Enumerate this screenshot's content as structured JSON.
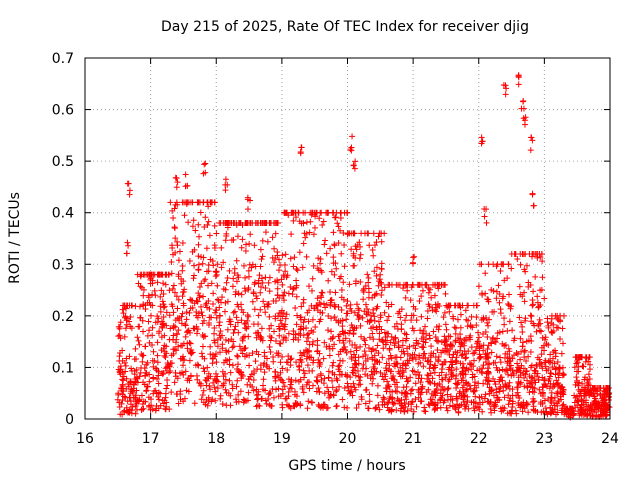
{
  "chart_data": {
    "type": "scatter",
    "title": "Day 215 of 2025, Rate Of TEC Index for receiver djig",
    "xlabel": "GPS time / hours",
    "ylabel": "ROTI / TECUs",
    "xlim": [
      16,
      24
    ],
    "ylim": [
      0,
      0.7
    ],
    "xticks": [
      "16",
      "17",
      "18",
      "19",
      "20",
      "21",
      "22",
      "23",
      "24"
    ],
    "yticks": [
      "0",
      "0.1",
      "0.2",
      "0.3",
      "0.4",
      "0.5",
      "0.6",
      "0.7"
    ],
    "grid": true,
    "marker": "plus",
    "color": "#ff0000",
    "notable_points": [
      {
        "x": 16.62,
        "y": 0.2
      },
      {
        "x": 16.65,
        "y": 0.35
      },
      {
        "x": 16.67,
        "y": 0.46
      },
      {
        "x": 17.4,
        "y": 0.47
      },
      {
        "x": 17.55,
        "y": 0.48
      },
      {
        "x": 17.82,
        "y": 0.5
      },
      {
        "x": 18.15,
        "y": 0.47
      },
      {
        "x": 18.5,
        "y": 0.43
      },
      {
        "x": 19.3,
        "y": 0.53
      },
      {
        "x": 20.05,
        "y": 0.55
      },
      {
        "x": 20.1,
        "y": 0.5
      },
      {
        "x": 21.0,
        "y": 0.32
      },
      {
        "x": 22.05,
        "y": 0.56
      },
      {
        "x": 22.1,
        "y": 0.41
      },
      {
        "x": 22.4,
        "y": 0.65
      },
      {
        "x": 22.62,
        "y": 0.67
      },
      {
        "x": 22.67,
        "y": 0.63
      },
      {
        "x": 22.7,
        "y": 0.59
      },
      {
        "x": 22.8,
        "y": 0.55
      },
      {
        "x": 22.83,
        "y": 0.44
      },
      {
        "x": 23.2,
        "y": 0.2
      },
      {
        "x": 23.5,
        "y": 0.11
      },
      {
        "x": 23.9,
        "y": 0.04
      }
    ],
    "density_profile": [
      {
        "x0": 16.5,
        "x1": 16.8,
        "peak": 0.22,
        "median": 0.04
      },
      {
        "x0": 16.8,
        "x1": 17.3,
        "peak": 0.28,
        "median": 0.08
      },
      {
        "x0": 17.3,
        "x1": 18.0,
        "peak": 0.42,
        "median": 0.12
      },
      {
        "x0": 18.0,
        "x1": 19.0,
        "peak": 0.38,
        "median": 0.12
      },
      {
        "x0": 19.0,
        "x1": 20.0,
        "peak": 0.4,
        "median": 0.1
      },
      {
        "x0": 20.0,
        "x1": 20.6,
        "peak": 0.36,
        "median": 0.09
      },
      {
        "x0": 20.6,
        "x1": 21.5,
        "peak": 0.26,
        "median": 0.07
      },
      {
        "x0": 21.5,
        "x1": 22.0,
        "peak": 0.22,
        "median": 0.06
      },
      {
        "x0": 22.0,
        "x1": 22.5,
        "peak": 0.3,
        "median": 0.05
      },
      {
        "x0": 22.5,
        "x1": 23.0,
        "peak": 0.32,
        "median": 0.05
      },
      {
        "x0": 23.0,
        "x1": 23.3,
        "peak": 0.2,
        "median": 0.04
      },
      {
        "x0": 23.3,
        "x1": 23.45,
        "peak": 0.02,
        "median": 0.01
      },
      {
        "x0": 23.45,
        "x1": 23.7,
        "peak": 0.12,
        "median": 0.03
      },
      {
        "x0": 23.7,
        "x1": 24.0,
        "peak": 0.06,
        "median": 0.02
      }
    ]
  }
}
